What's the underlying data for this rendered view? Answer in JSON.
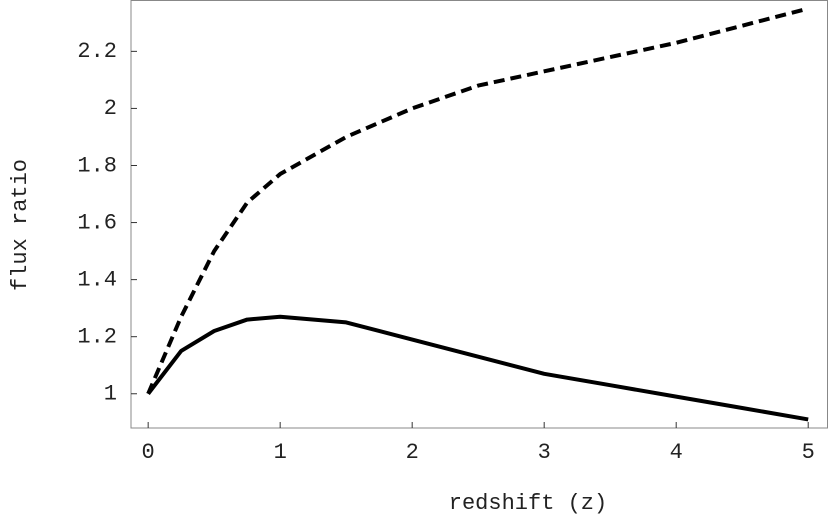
{
  "chart_data": {
    "type": "line",
    "x_label": "redshift (z)",
    "y_label": "flux ratio",
    "x": [
      0,
      0.25,
      0.5,
      0.75,
      1,
      1.5,
      2,
      2.5,
      3,
      3.5,
      4,
      4.5,
      5
    ],
    "series": [
      {
        "color": "#000000",
        "dash": true,
        "values": [
          1.0,
          1.27,
          1.5,
          1.67,
          1.77,
          1.9,
          2.0,
          2.08,
          2.13,
          2.18,
          2.23,
          2.29,
          2.35
        ]
      },
      {
        "color": "#000000",
        "dash": false,
        "values": [
          1.0,
          1.15,
          1.22,
          1.26,
          1.27,
          1.25,
          1.19,
          1.13,
          1.07,
          1.03,
          0.99,
          0.95,
          0.91
        ]
      }
    ],
    "xlim": [
      -0.13,
      5.15
    ],
    "ylim": [
      0.88,
      2.38
    ],
    "xticks": [
      0,
      1,
      2,
      3,
      4,
      5
    ],
    "yticks": [
      1,
      1.2,
      1.4,
      1.6,
      1.8,
      2,
      2.2
    ]
  }
}
